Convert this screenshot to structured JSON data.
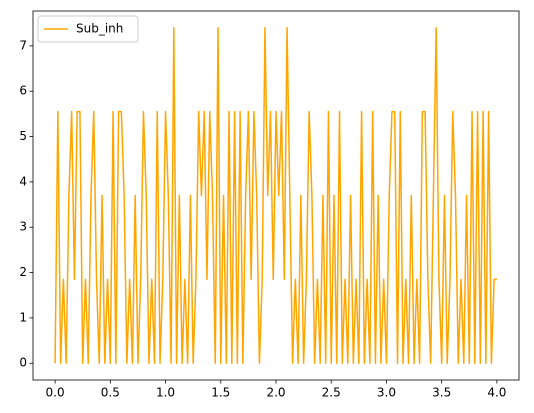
{
  "chart_data": {
    "type": "line",
    "x": [
      0,
      0.025,
      0.05,
      0.075,
      0.1,
      0.125,
      0.15,
      0.175,
      0.2,
      0.225,
      0.25,
      0.275,
      0.3,
      0.325,
      0.35,
      0.375,
      0.4,
      0.425,
      0.45,
      0.475,
      0.5,
      0.525,
      0.55,
      0.575,
      0.6,
      0.625,
      0.65,
      0.675,
      0.7,
      0.725,
      0.75,
      0.775,
      0.8,
      0.825,
      0.85,
      0.875,
      0.9,
      0.925,
      0.95,
      0.975,
      1,
      1.025,
      1.05,
      1.075,
      1.1,
      1.125,
      1.15,
      1.175,
      1.2,
      1.225,
      1.25,
      1.275,
      1.3,
      1.325,
      1.35,
      1.375,
      1.4,
      1.425,
      1.45,
      1.475,
      1.5,
      1.525,
      1.55,
      1.575,
      1.6,
      1.625,
      1.65,
      1.675,
      1.7,
      1.725,
      1.75,
      1.775,
      1.8,
      1.825,
      1.85,
      1.875,
      1.9,
      1.925,
      1.95,
      1.975,
      2,
      2.025,
      2.05,
      2.075,
      2.1,
      2.125,
      2.15,
      2.175,
      2.2,
      2.225,
      2.25,
      2.275,
      2.3,
      2.325,
      2.35,
      2.375,
      2.4,
      2.425,
      2.45,
      2.475,
      2.5,
      2.525,
      2.55,
      2.575,
      2.6,
      2.625,
      2.65,
      2.675,
      2.7,
      2.725,
      2.75,
      2.775,
      2.8,
      2.825,
      2.85,
      2.875,
      2.9,
      2.925,
      2.95,
      2.975,
      3,
      3.025,
      3.05,
      3.075,
      3.1,
      3.125,
      3.15,
      3.175,
      3.2,
      3.225,
      3.25,
      3.275,
      3.3,
      3.325,
      3.35,
      3.375,
      3.4,
      3.425,
      3.45,
      3.475,
      3.5,
      3.525,
      3.55,
      3.575,
      3.6,
      3.625,
      3.65,
      3.675,
      3.7,
      3.725,
      3.75,
      3.775,
      3.8,
      3.825,
      3.85,
      3.875,
      3.9,
      3.925,
      3.95,
      3.975,
      4
    ],
    "series": [
      {
        "name": "Sub_inh",
        "color": "#ffa500",
        "values": [
          0,
          5.55,
          0,
          1.85,
          0,
          3.7,
          5.55,
          1.85,
          5.55,
          5.55,
          0,
          1.85,
          0,
          3.7,
          5.55,
          1.85,
          0,
          3.7,
          0,
          1.85,
          0,
          5.55,
          0,
          5.55,
          5.55,
          3.7,
          0,
          1.85,
          0,
          3.7,
          0,
          1.85,
          5.55,
          3.7,
          0,
          1.85,
          0,
          5.55,
          0,
          1.85,
          5.55,
          3.7,
          0,
          7.4,
          0,
          3.7,
          0,
          1.85,
          0,
          3.7,
          0,
          1.85,
          5.55,
          3.7,
          5.55,
          1.85,
          5.55,
          3.7,
          0,
          7.4,
          0,
          3.7,
          0,
          5.55,
          0,
          5.55,
          0,
          5.55,
          0,
          3.7,
          5.55,
          1.85,
          5.55,
          3.7,
          0,
          1.85,
          7.4,
          3.7,
          5.55,
          1.85,
          5.55,
          3.7,
          5.55,
          1.85,
          7.4,
          3.7,
          0,
          1.85,
          0,
          3.7,
          0,
          1.85,
          5.55,
          3.7,
          0,
          1.85,
          0,
          3.7,
          0,
          5.55,
          0,
          3.7,
          0,
          5.55,
          0,
          1.85,
          0,
          3.7,
          0,
          1.85,
          0,
          5.55,
          0,
          1.85,
          0,
          5.55,
          0,
          3.7,
          0,
          1.85,
          0,
          3.7,
          5.55,
          5.55,
          0,
          5.55,
          0,
          1.85,
          0,
          3.7,
          0,
          1.85,
          0,
          5.55,
          5.55,
          1.85,
          0,
          3.7,
          7.4,
          1.85,
          0,
          3.7,
          0,
          1.85,
          5.55,
          3.7,
          0,
          1.85,
          0,
          3.7,
          0,
          5.55,
          0,
          5.55,
          0,
          5.55,
          0,
          5.55,
          0,
          1.85,
          1.85
        ]
      }
    ],
    "xlim": [
      -0.2,
      4.2
    ],
    "xticks": [
      {
        "value": 0,
        "label": "0.0"
      },
      {
        "value": 0.5,
        "label": "0.5"
      },
      {
        "value": 1,
        "label": "1.0"
      },
      {
        "value": 1.5,
        "label": "1.5"
      },
      {
        "value": 2,
        "label": "2.0"
      },
      {
        "value": 2.5,
        "label": "2.5"
      },
      {
        "value": 3,
        "label": "3.0"
      },
      {
        "value": 3.5,
        "label": "3.5"
      },
      {
        "value": 4,
        "label": "4.0"
      }
    ],
    "ylim": [
      -0.37,
      7.77
    ],
    "yticks": [
      0,
      1,
      2,
      3,
      4,
      5,
      6,
      7
    ],
    "legend": "upper left"
  }
}
